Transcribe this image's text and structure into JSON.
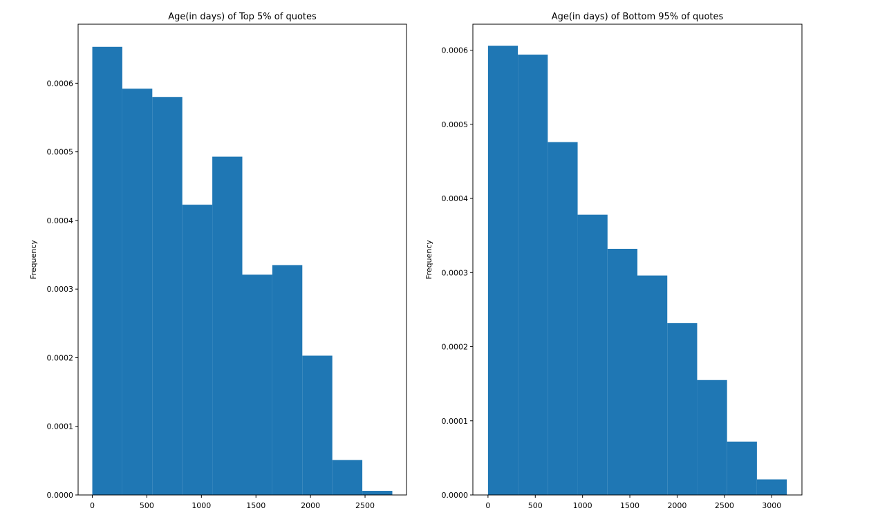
{
  "chart_data": [
    {
      "type": "bar",
      "title": "Age(in days) of Top 5% of quotes",
      "xlabel": "",
      "ylabel": "Frequency",
      "xlim": [
        -130,
        2880
      ],
      "ylim": [
        0,
        0.000686
      ],
      "xticks": [
        0,
        500,
        1000,
        1500,
        2000,
        2500
      ],
      "xtick_labels": [
        "0",
        "500",
        "1000",
        "1500",
        "2000",
        "2500"
      ],
      "yticks": [
        0,
        0.0001,
        0.0002,
        0.0003,
        0.0004,
        0.0005,
        0.0006
      ],
      "ytick_labels": [
        "0.0000",
        "0.0001",
        "0.0002",
        "0.0003",
        "0.0004",
        "0.0005",
        "0.0006"
      ],
      "bin_edges": [
        0,
        275,
        550,
        825,
        1100,
        1375,
        1650,
        1925,
        2200,
        2475,
        2750
      ],
      "values": [
        0.000653,
        0.000592,
        0.00058,
        0.000423,
        0.000493,
        0.000321,
        0.000335,
        0.000203,
        5.1e-05,
        6e-06
      ],
      "color": "#1f77b4",
      "grid": false,
      "legend": false
    },
    {
      "type": "bar",
      "title": "Age(in days) of Bottom 95% of quotes",
      "xlabel": "",
      "ylabel": "Frequency",
      "xlim": [
        -160,
        3320
      ],
      "ylim": [
        0,
        0.000635
      ],
      "xticks": [
        0,
        500,
        1000,
        1500,
        2000,
        2500,
        3000
      ],
      "xtick_labels": [
        "0",
        "500",
        "1000",
        "1500",
        "2000",
        "2500",
        "3000"
      ],
      "yticks": [
        0,
        0.0001,
        0.0002,
        0.0003,
        0.0004,
        0.0005,
        0.0006
      ],
      "ytick_labels": [
        "0.0000",
        "0.0001",
        "0.0002",
        "0.0003",
        "0.0004",
        "0.0005",
        "0.0006"
      ],
      "bin_edges": [
        0,
        316,
        632,
        948,
        1264,
        1580,
        1896,
        2212,
        2528,
        2844,
        3160
      ],
      "values": [
        0.000606,
        0.000594,
        0.000476,
        0.000378,
        0.000332,
        0.000296,
        0.000232,
        0.000155,
        7.2e-05,
        2.1e-05
      ],
      "color": "#1f77b4",
      "grid": false,
      "legend": false
    }
  ]
}
